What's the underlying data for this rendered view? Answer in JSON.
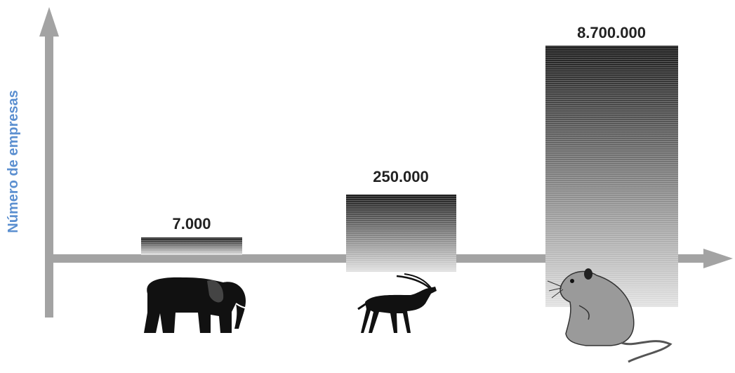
{
  "axis_label": "Número de empresas",
  "bars": [
    {
      "label": "7.000"
    },
    {
      "label": "250.000"
    },
    {
      "label": "8.700.000"
    }
  ]
}
